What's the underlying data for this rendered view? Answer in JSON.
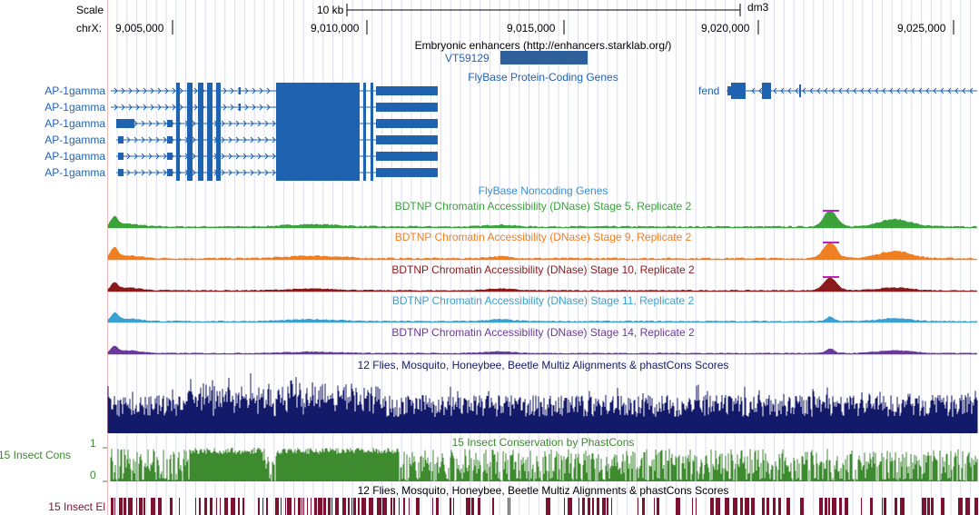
{
  "browser": {
    "assembly": "dm3",
    "scale_label": "Scale",
    "scale_value": "10 kb",
    "chrom_label": "chrX:",
    "ticks": [
      "9,005,000",
      "9,010,000",
      "9,015,000",
      "9,020,000",
      "9,025,000"
    ]
  },
  "tracks": {
    "enhancers": {
      "title": "Embryonic enhancers (http://enhancers.starklab.org/)",
      "item": "VT59129"
    },
    "protein_coding": {
      "title": "FlyBase Protein-Coding Genes",
      "genes": [
        "AP-1gamma",
        "AP-1gamma",
        "AP-1gamma",
        "AP-1gamma",
        "AP-1gamma",
        "AP-1gamma"
      ],
      "right_gene": "fend"
    },
    "noncoding": {
      "title": "FlyBase Noncoding Genes"
    },
    "dnase": [
      {
        "title": "BDTNP Chromatin Accessibility (DNase) Stage 5, Replicate 2",
        "color": "#3aa23a"
      },
      {
        "title": "BDTNP Chromatin Accessibility (DNase) Stage 9, Replicate 2",
        "color": "#f07f22"
      },
      {
        "title": "BDTNP Chromatin Accessibility (DNase) Stage 10, Replicate 2",
        "color": "#8b1a1a"
      },
      {
        "title": "BDTNP Chromatin Accessibility (DNase) Stage 11, Replicate 2",
        "color": "#3aa0d2"
      },
      {
        "title": "BDTNP Chromatin Accessibility (DNase) Stage 14, Replicate 2",
        "color": "#6a3a9a"
      }
    ],
    "multiz": {
      "title": "12 Flies, Mosquito, Honeybee, Beetle Multiz Alignments & phastCons Scores",
      "color": "#141a6a"
    },
    "phastcons": {
      "title": "15 Insect Conservation by PhastCons",
      "side_label": "15 Insect Cons",
      "axis_max": "1",
      "axis_min": "0",
      "color": "#3d8a2f"
    },
    "elements": {
      "title": "12 Flies, Mosquito, Honeybee, Beetle Multiz Alignments & phastCons Scores",
      "side_label": "15 Insect El",
      "color": "#7a1230"
    }
  }
}
